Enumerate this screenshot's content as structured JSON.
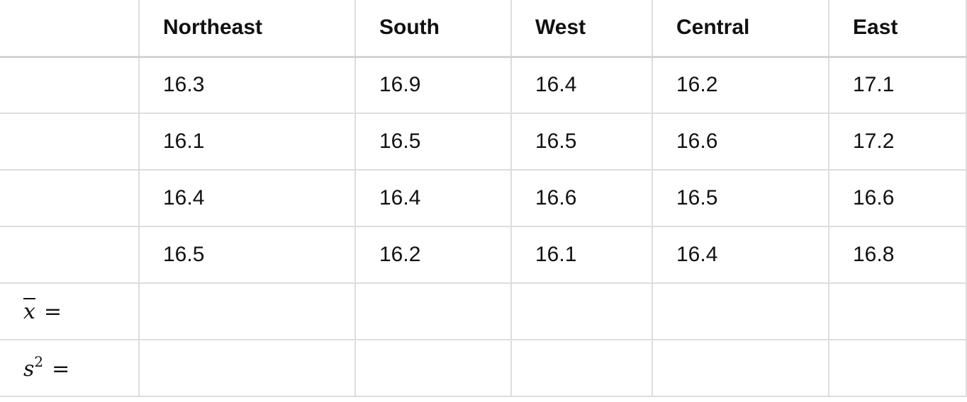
{
  "table": {
    "headers": [
      "",
      "Northeast",
      "South",
      "West",
      "Central",
      "East"
    ],
    "rows": [
      [
        "16.3",
        "16.9",
        "16.4",
        "16.2",
        "17.1"
      ],
      [
        "16.1",
        "16.5",
        "16.5",
        "16.6",
        "17.2"
      ],
      [
        "16.4",
        "16.4",
        "16.6",
        "16.5",
        "16.6"
      ],
      [
        "16.5",
        "16.2",
        "16.1",
        "16.4",
        "16.8"
      ]
    ],
    "mean_row": {
      "symbol": "x",
      "equals": "="
    },
    "variance_row": {
      "symbol": "s",
      "superscript": "2",
      "equals": "="
    }
  }
}
